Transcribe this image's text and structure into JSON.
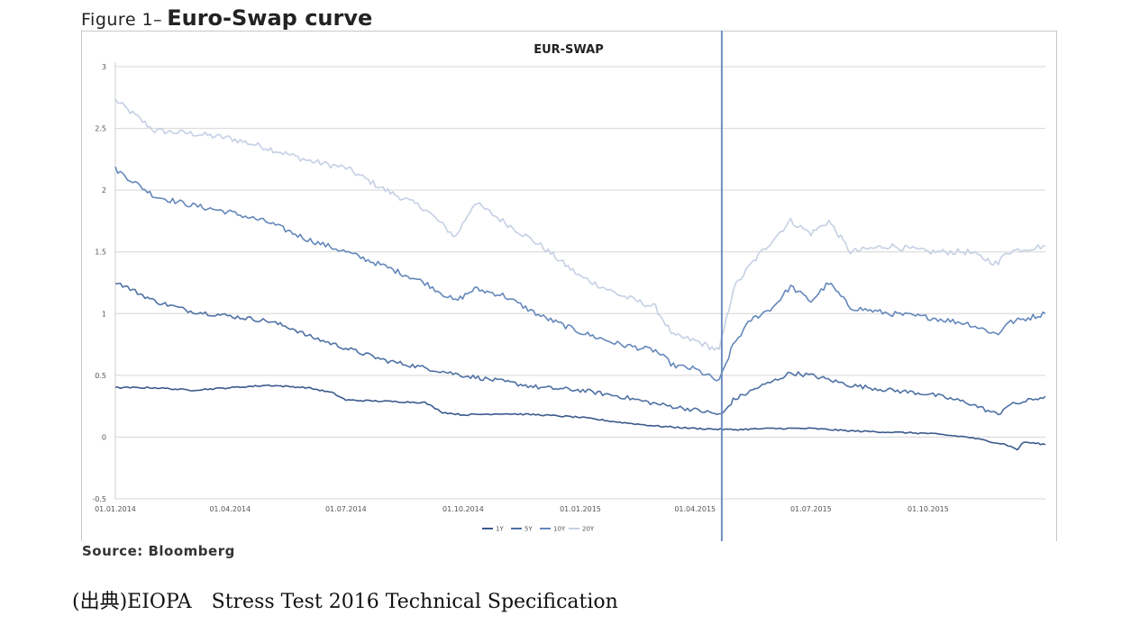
{
  "figure": {
    "prefix": "Figure 1–",
    "title": "Euro-Swap curve"
  },
  "source_note": "Source: Bloomberg",
  "credit_line": "(出典)EIOPA　Stress Test 2016 Technical Specification",
  "chart_data": {
    "type": "line",
    "title": "EUR-SWAP",
    "xlabel": "",
    "ylabel": "",
    "ylim": [
      -0.5,
      3
    ],
    "yticks": [
      -0.5,
      0,
      0.5,
      1,
      1.5,
      2,
      2.5,
      3
    ],
    "ytick_labels": [
      "-0.5",
      "0",
      "0.5",
      "1",
      "1.5",
      "2",
      "2.5",
      "3"
    ],
    "xlim": [
      "2014-01-01",
      "2016-01-01"
    ],
    "xticks": [
      "2014-01-01",
      "2014-04-01",
      "2014-07-01",
      "2014-10-01",
      "2015-01-01",
      "2015-04-01",
      "2015-07-01",
      "2015-10-01"
    ],
    "xtick_labels": [
      "01.01.2014",
      "01.04.2014",
      "01.07.2014",
      "01.10.2014",
      "01.01.2015",
      "01.04.2015",
      "01.07.2015",
      "01.10.2015"
    ],
    "grid": "horizontal",
    "legend_position": "bottom",
    "vertical_marker": {
      "date": "2015-04-22",
      "color": "#6f8fbf"
    },
    "series": [
      {
        "name": "1Y",
        "color": "#3a5a8c",
        "points": [
          [
            "2014-01-01",
            0.4
          ],
          [
            "2014-02-01",
            0.4
          ],
          [
            "2014-03-01",
            0.38
          ],
          [
            "2014-04-01",
            0.4
          ],
          [
            "2014-05-01",
            0.42
          ],
          [
            "2014-06-01",
            0.4
          ],
          [
            "2014-06-20",
            0.36
          ],
          [
            "2014-07-01",
            0.3
          ],
          [
            "2014-08-01",
            0.29
          ],
          [
            "2014-09-01",
            0.28
          ],
          [
            "2014-09-15",
            0.2
          ],
          [
            "2014-10-01",
            0.18
          ],
          [
            "2014-11-01",
            0.19
          ],
          [
            "2014-12-01",
            0.18
          ],
          [
            "2015-01-01",
            0.16
          ],
          [
            "2015-02-01",
            0.12
          ],
          [
            "2015-03-01",
            0.09
          ],
          [
            "2015-04-01",
            0.07
          ],
          [
            "2015-05-01",
            0.06
          ],
          [
            "2015-06-01",
            0.07
          ],
          [
            "2015-07-01",
            0.07
          ],
          [
            "2015-08-01",
            0.05
          ],
          [
            "2015-09-01",
            0.04
          ],
          [
            "2015-10-01",
            0.03
          ],
          [
            "2015-11-01",
            0.0
          ],
          [
            "2015-12-01",
            -0.06
          ],
          [
            "2015-12-10",
            -0.1
          ],
          [
            "2015-12-15",
            -0.04
          ],
          [
            "2016-01-01",
            -0.06
          ]
        ]
      },
      {
        "name": "5Y",
        "color": "#4f71a4",
        "points": [
          [
            "2014-01-01",
            1.26
          ],
          [
            "2014-02-01",
            1.1
          ],
          [
            "2014-03-01",
            1.02
          ],
          [
            "2014-04-01",
            0.98
          ],
          [
            "2014-05-01",
            0.94
          ],
          [
            "2014-05-20",
            0.88
          ],
          [
            "2014-06-01",
            0.82
          ],
          [
            "2014-07-01",
            0.72
          ],
          [
            "2014-08-01",
            0.62
          ],
          [
            "2014-09-01",
            0.56
          ],
          [
            "2014-10-01",
            0.5
          ],
          [
            "2014-11-01",
            0.45
          ],
          [
            "2014-12-01",
            0.4
          ],
          [
            "2015-01-01",
            0.38
          ],
          [
            "2015-02-01",
            0.33
          ],
          [
            "2015-03-01",
            0.27
          ],
          [
            "2015-04-01",
            0.22
          ],
          [
            "2015-04-22",
            0.18
          ],
          [
            "2015-05-01",
            0.3
          ],
          [
            "2015-05-20",
            0.4
          ],
          [
            "2015-06-01",
            0.45
          ],
          [
            "2015-06-15",
            0.52
          ],
          [
            "2015-07-01",
            0.5
          ],
          [
            "2015-08-01",
            0.42
          ],
          [
            "2015-09-01",
            0.38
          ],
          [
            "2015-10-01",
            0.35
          ],
          [
            "2015-11-01",
            0.28
          ],
          [
            "2015-11-25",
            0.18
          ],
          [
            "2015-12-01",
            0.25
          ],
          [
            "2016-01-01",
            0.33
          ]
        ]
      },
      {
        "name": "10Y",
        "color": "#6488bb",
        "points": [
          [
            "2014-01-01",
            2.17
          ],
          [
            "2014-02-01",
            1.95
          ],
          [
            "2014-03-01",
            1.88
          ],
          [
            "2014-04-01",
            1.82
          ],
          [
            "2014-05-01",
            1.74
          ],
          [
            "2014-06-01",
            1.6
          ],
          [
            "2014-07-01",
            1.5
          ],
          [
            "2014-08-01",
            1.38
          ],
          [
            "2014-09-01",
            1.25
          ],
          [
            "2014-09-25",
            1.1
          ],
          [
            "2014-10-10",
            1.2
          ],
          [
            "2014-11-01",
            1.15
          ],
          [
            "2014-12-01",
            0.98
          ],
          [
            "2015-01-01",
            0.85
          ],
          [
            "2015-02-01",
            0.75
          ],
          [
            "2015-03-01",
            0.7
          ],
          [
            "2015-03-15",
            0.58
          ],
          [
            "2015-04-01",
            0.55
          ],
          [
            "2015-04-20",
            0.45
          ],
          [
            "2015-05-01",
            0.75
          ],
          [
            "2015-05-15",
            0.95
          ],
          [
            "2015-06-01",
            1.05
          ],
          [
            "2015-06-15",
            1.22
          ],
          [
            "2015-07-01",
            1.1
          ],
          [
            "2015-07-15",
            1.25
          ],
          [
            "2015-08-01",
            1.05
          ],
          [
            "2015-09-01",
            1.0
          ],
          [
            "2015-10-01",
            0.97
          ],
          [
            "2015-11-01",
            0.92
          ],
          [
            "2015-11-25",
            0.83
          ],
          [
            "2015-12-01",
            0.92
          ],
          [
            "2016-01-01",
            1.0
          ]
        ]
      },
      {
        "name": "20Y",
        "color": "#c5d0e3",
        "points": [
          [
            "2014-01-01",
            2.73
          ],
          [
            "2014-02-01",
            2.48
          ],
          [
            "2014-03-01",
            2.46
          ],
          [
            "2014-04-01",
            2.42
          ],
          [
            "2014-05-01",
            2.34
          ],
          [
            "2014-06-01",
            2.24
          ],
          [
            "2014-07-01",
            2.18
          ],
          [
            "2014-08-01",
            2.0
          ],
          [
            "2014-09-01",
            1.85
          ],
          [
            "2014-09-25",
            1.62
          ],
          [
            "2014-10-10",
            1.9
          ],
          [
            "2014-11-01",
            1.75
          ],
          [
            "2014-12-01",
            1.55
          ],
          [
            "2015-01-01",
            1.3
          ],
          [
            "2015-02-01",
            1.15
          ],
          [
            "2015-03-01",
            1.05
          ],
          [
            "2015-03-15",
            0.82
          ],
          [
            "2015-04-01",
            0.78
          ],
          [
            "2015-04-20",
            0.7
          ],
          [
            "2015-05-01",
            1.2
          ],
          [
            "2015-05-15",
            1.4
          ],
          [
            "2015-06-01",
            1.6
          ],
          [
            "2015-06-15",
            1.75
          ],
          [
            "2015-07-01",
            1.65
          ],
          [
            "2015-07-15",
            1.75
          ],
          [
            "2015-08-01",
            1.5
          ],
          [
            "2015-09-01",
            1.55
          ],
          [
            "2015-10-01",
            1.5
          ],
          [
            "2015-11-01",
            1.5
          ],
          [
            "2015-11-25",
            1.4
          ],
          [
            "2015-12-01",
            1.5
          ],
          [
            "2016-01-01",
            1.55
          ]
        ]
      }
    ]
  }
}
